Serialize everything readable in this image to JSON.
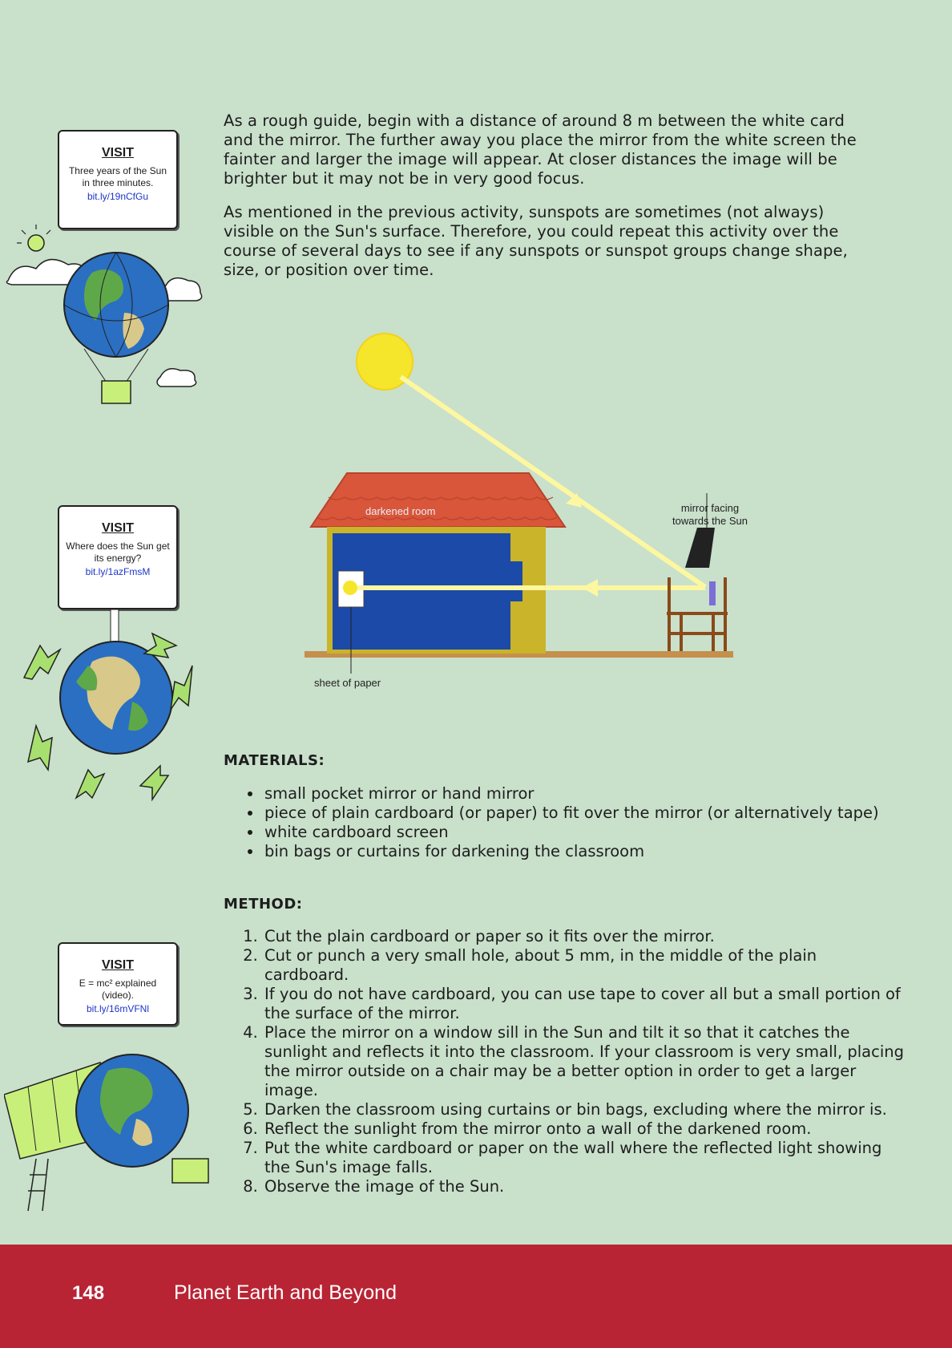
{
  "intro": {
    "p1": "As a rough guide, begin with a distance of around 8 m between the white card and the mirror. The further away you place the mirror from the white screen the fainter and larger the image will appear. At closer distances the image will be brighter but it may not be in very good focus.",
    "p2": "As mentioned in the previous activity, sunspots are sometimes (not always) visible on the Sun's surface. Therefore, you could repeat this activity over the course of several days to see if any sunspots or sunspot groups change shape, size, or position over time."
  },
  "diagram": {
    "room_label": "darkened room",
    "mirror_label_line1": "mirror facing",
    "mirror_label_line2": "towards the Sun",
    "paper_label": "sheet of paper"
  },
  "materials": {
    "heading": "MATERIALS:",
    "items": [
      "small pocket mirror or hand mirror",
      "piece of plain cardboard (or paper) to fit over the mirror (or alternatively tape)",
      "white cardboard screen",
      "bin bags or curtains for darkening the classroom"
    ]
  },
  "method": {
    "heading": "METHOD:",
    "steps": [
      "Cut the plain cardboard or paper so it fits over the mirror.",
      "Cut or punch a very small hole, about 5 mm, in the middle of the plain cardboard.",
      "If you do not have cardboard, you can use tape to cover all but a small portion of the surface of the mirror.",
      "Place the mirror on a window sill in the Sun and tilt it so that it catches the sunlight and reflects it into the classroom. If your classroom is very small, placing the mirror outside on a chair may be a better option in order to get a larger image.",
      "Darken the classroom using curtains or bin bags, excluding where the mirror is.",
      "Reflect the sunlight from the mirror onto a wall of the darkened room.",
      "Put the white cardboard or paper on the wall where the reflected light showing the Sun's image falls.",
      "Observe the image of the Sun."
    ]
  },
  "visits": [
    {
      "visit": "VISIT",
      "text": "Three years of the Sun in three minutes.",
      "link": "bit.ly/19nCfGu"
    },
    {
      "visit": "VISIT",
      "text": "Where does the Sun get its energy?",
      "link": "bit.ly/1azFmsM"
    },
    {
      "visit": "VISIT",
      "text": "E = mc² explained (video).",
      "link": "bit.ly/16mVFNl"
    }
  ],
  "footer": {
    "page_number": "148",
    "title": "Planet Earth and Beyond"
  }
}
